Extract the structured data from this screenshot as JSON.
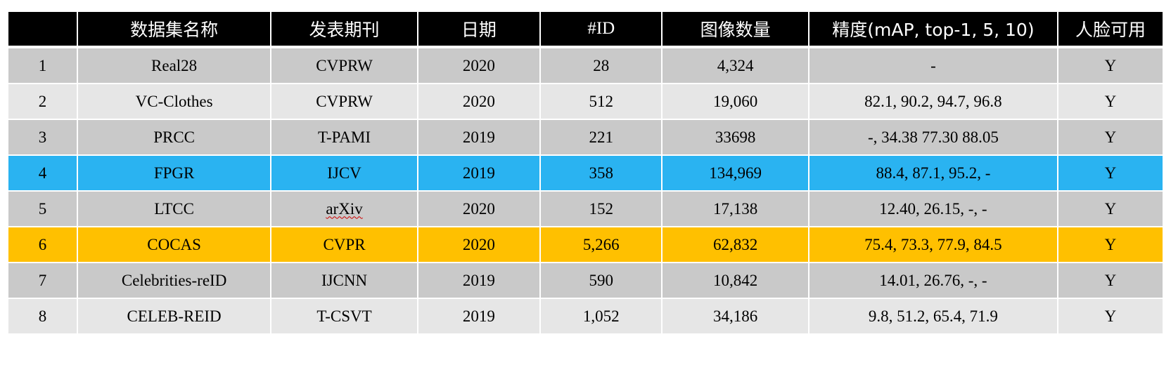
{
  "table": {
    "headers": [
      "",
      "数据集名称",
      "发表期刊",
      "日期",
      "#ID",
      "图像数量",
      "精度(mAP, top-1, 5, 10)",
      "人脸可用"
    ],
    "rows": [
      [
        "1",
        "Real28",
        "CVPRW",
        "2020",
        "28",
        "4,324",
        "-",
        "Y"
      ],
      [
        "2",
        "VC-Clothes",
        "CVPRW",
        "2020",
        "512",
        "19,060",
        "82.1, 90.2, 94.7, 96.8",
        "Y"
      ],
      [
        "3",
        "PRCC",
        "T-PAMI",
        "2019",
        "221",
        "33698",
        "-, 34.38 77.30 88.05",
        "Y"
      ],
      [
        "4",
        "FPGR",
        "IJCV",
        "2019",
        "358",
        "134,969",
        "88.4, 87.1, 95.2, -",
        "Y"
      ],
      [
        "5",
        "LTCC",
        "arXiv",
        "2020",
        "152",
        "17,138",
        "12.40, 26.15, -, -",
        "Y"
      ],
      [
        "6",
        "COCAS",
        "CVPR",
        "2020",
        "5,266",
        "62,832",
        "75.4, 73.3, 77.9, 84.5",
        "Y"
      ],
      [
        "7",
        "Celebrities-reID",
        "IJCNN",
        "2019",
        "590",
        "10,842",
        "14.01, 26.76, -, -",
        "Y"
      ],
      [
        "8",
        "CELEB-REID",
        "T-CSVT",
        "2019",
        "1,052",
        "34,186",
        "9.8, 51.2, 65.4, 71.9",
        "Y"
      ]
    ]
  },
  "colors": {
    "header_bg": "#000000",
    "row_dark": "#c9c9c9",
    "row_light": "#e6e6e6",
    "highlight_blue": "#2ab3f1",
    "highlight_yellow": "#ffc000"
  }
}
